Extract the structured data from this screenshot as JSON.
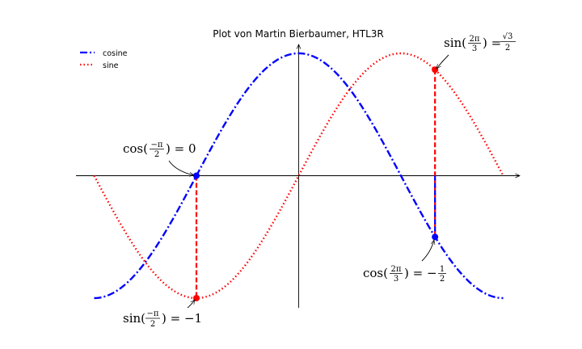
{
  "chart_data": {
    "type": "line",
    "title": "Plot von Martin Bierbaumer, HTL3R",
    "xlim": [
      -3.14159,
      3.14159
    ],
    "ylim": [
      -1.0,
      1.0
    ],
    "grid": false,
    "legend_position": "top-left",
    "axes_style": "centered spines with arrowheads",
    "series": [
      {
        "name": "cosine",
        "function": "cos(x)",
        "color": "#0000ff",
        "linestyle": "dashdot"
      },
      {
        "name": "sine",
        "function": "sin(x)",
        "color": "#ff0000",
        "linestyle": "dotted"
      }
    ],
    "points": [
      {
        "x": -1.5708,
        "y": 0.0,
        "series": "cosine",
        "color": "#0000ff"
      },
      {
        "x": -1.5708,
        "y": -1.0,
        "series": "sine",
        "color": "#ff0000"
      },
      {
        "x": 2.0944,
        "y": 0.866,
        "series": "sine",
        "color": "#ff0000"
      },
      {
        "x": 2.0944,
        "y": -0.5,
        "series": "cosine",
        "color": "#0000ff"
      }
    ],
    "guide_lines": [
      {
        "x": -1.5708,
        "from": 0.0,
        "to": -1.0,
        "color": "#ff0000",
        "linestyle": "dashed"
      },
      {
        "x": 2.0944,
        "from": 0.866,
        "to": -0.5,
        "color": "#ff0000",
        "linestyle": "dashed"
      },
      {
        "x": 2.0944,
        "from": 0.0,
        "to": -0.5,
        "color": "#0000ff",
        "linestyle": "dashed"
      }
    ],
    "annotations": [
      {
        "id": "cos_neg_half_pi",
        "text_parts": [
          "cos(",
          "−π",
          "2",
          ") = 0"
        ]
      },
      {
        "id": "sin_neg_half_pi",
        "text_parts": [
          "sin(",
          "−π",
          "2",
          ") = −1"
        ]
      },
      {
        "id": "sin_two_thirds_pi",
        "text_parts": [
          "sin(",
          "2π",
          "3",
          ") = ",
          "√3",
          "2"
        ]
      },
      {
        "id": "cos_two_thirds_pi",
        "text_parts": [
          "cos(",
          "2π",
          "3",
          ") = −",
          "1",
          "2"
        ]
      }
    ]
  }
}
